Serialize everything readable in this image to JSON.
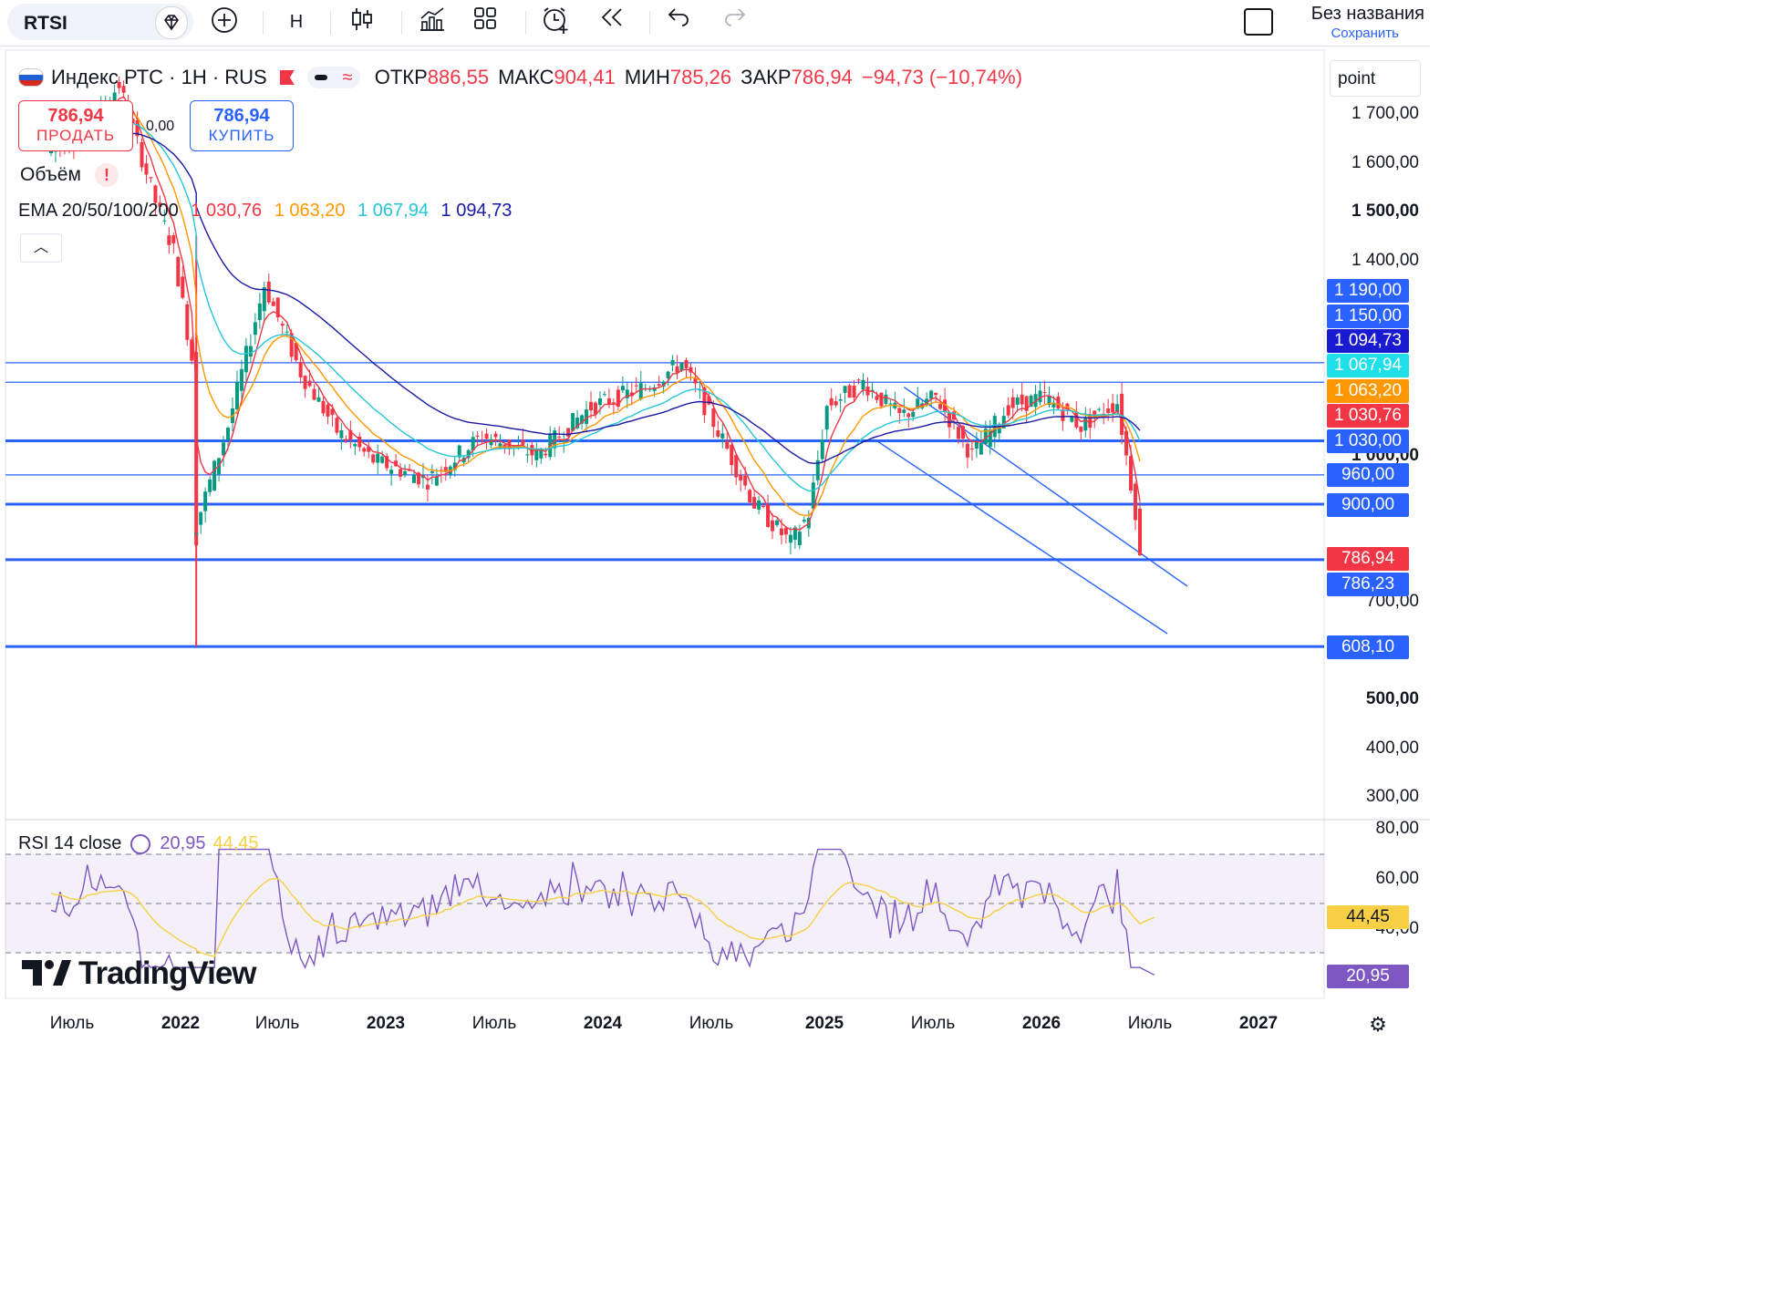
{
  "toolbar": {
    "symbol": "RTSI",
    "interval": "Н",
    "layout_title": "Без названия",
    "save_label": "Сохранить"
  },
  "legend": {
    "name": "Индекс РТС · 1Н · RUS",
    "open_label": "ОТКР",
    "open_value": "886,55",
    "high_label": "МАКС",
    "high_value": "904,41",
    "low_label": "МИН",
    "low_value": "785,26",
    "close_label": "ЗАКР",
    "close_value": "786,94",
    "change": "−94,73 (−10,74%)"
  },
  "trade": {
    "sell_price": "786,94",
    "sell_label": "ПРОДАТЬ",
    "buy_price": "786,94",
    "buy_label": "КУПИТЬ",
    "spread": "0,00"
  },
  "volume_label": "Объём",
  "ema": {
    "label": "EMA 20/50/100/200",
    "values": [
      "1 030,76",
      "1 063,20",
      "1 067,94",
      "1 094,73"
    ],
    "colors": [
      "#f23645",
      "#ff9800",
      "#26c6da",
      "#1a1aa6"
    ]
  },
  "rsi": {
    "label": "RSI 14 close",
    "value": "20,95",
    "ma_value": "44,45"
  },
  "scale_mode": "point",
  "price_axis": [
    "1 700,00",
    "1 600,00",
    "1 500,00",
    "1 400,00",
    "1 000,00",
    "700,00",
    "500,00",
    "400,00",
    "300,00"
  ],
  "price_tags": [
    {
      "text": "1 190,00",
      "color": "#2962ff"
    },
    {
      "text": "1 150,00",
      "color": "#2962ff"
    },
    {
      "text": "1 094,73",
      "color": "#1a1ad0"
    },
    {
      "text": "1 067,94",
      "color": "#1fe0e8"
    },
    {
      "text": "1 063,20",
      "color": "#ff9800"
    },
    {
      "text": "1 030,76",
      "color": "#f23645"
    },
    {
      "text": "1 030,00",
      "color": "#2962ff"
    },
    {
      "text": "960,00",
      "color": "#2962ff"
    },
    {
      "text": "900,00",
      "color": "#2962ff"
    },
    {
      "text": "786,94",
      "color": "#f23645"
    },
    {
      "text": "786,23",
      "color": "#2962ff"
    },
    {
      "text": "608,10",
      "color": "#2962ff"
    }
  ],
  "rsi_axis": [
    "80,00",
    "60,00",
    "40,00"
  ],
  "rsi_tags": [
    {
      "text": "44,45",
      "color": "#f7d046",
      "fg": "#131722"
    },
    {
      "text": "20,95",
      "color": "#7e57c2",
      "fg": "#ffffff"
    }
  ],
  "time_axis": [
    "Июль",
    "2022",
    "Июль",
    "2023",
    "Июль",
    "2024",
    "Июль",
    "2025",
    "Июль",
    "2026",
    "Июль",
    "2027"
  ],
  "brand": "TradingView",
  "chart_data": {
    "type": "candlestick",
    "timeframe": "1Н",
    "ylim": [
      250,
      1750
    ],
    "horizontal_levels": [
      1190,
      1150,
      1030,
      960,
      900,
      786.23,
      608.1
    ],
    "last_close": 786.94,
    "ohlc_last": {
      "open": 886.55,
      "high": 904.41,
      "low": 785.26,
      "close": 786.94
    },
    "price_path": [
      [
        "2021-06",
        1620
      ],
      [
        "2021-08",
        1660
      ],
      [
        "2021-10",
        1760
      ],
      [
        "2021-12",
        1520
      ],
      [
        "2022-01",
        1420
      ],
      [
        "2022-02",
        1200
      ],
      [
        "2022-02",
        830
      ],
      [
        "2022-04",
        1060
      ],
      [
        "2022-06",
        1350
      ],
      [
        "2022-08",
        1170
      ],
      [
        "2022-10",
        1050
      ],
      [
        "2022-12",
        990
      ],
      [
        "2023-03",
        950
      ],
      [
        "2023-06",
        1040
      ],
      [
        "2023-09",
        1000
      ],
      [
        "2023-12",
        1100
      ],
      [
        "2024-03",
        1140
      ],
      [
        "2024-05",
        1190
      ],
      [
        "2024-07",
        1050
      ],
      [
        "2024-09",
        900
      ],
      [
        "2024-11",
        820
      ],
      [
        "2024-12",
        880
      ],
      [
        "2025-01",
        1100
      ],
      [
        "2025-03",
        1150
      ],
      [
        "2025-05",
        1080
      ],
      [
        "2025-07",
        1120
      ],
      [
        "2025-09",
        1000
      ],
      [
        "2025-11",
        1100
      ],
      [
        "2026-01",
        1120
      ],
      [
        "2026-03",
        1060
      ],
      [
        "2026-05",
        1110
      ],
      [
        "2026-06",
        887
      ],
      [
        "2026-06",
        787
      ]
    ],
    "ema_current": {
      "EMA20": 1030.76,
      "EMA50": 1063.2,
      "EMA100": 1067.94,
      "EMA200": 1094.73
    },
    "rsi": {
      "ylim": [
        20,
        80
      ],
      "bands": [
        30,
        70
      ],
      "mid": 50,
      "value": 20.95,
      "ma": 44.45
    }
  }
}
